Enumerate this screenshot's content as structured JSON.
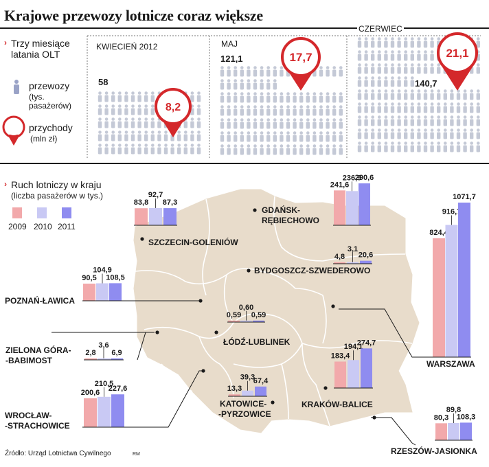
{
  "title": "Krajowe przewozy lotnicze coraz większe",
  "colors": {
    "accent": "#d4282b",
    "map": "#e8dccb",
    "map_border": "#ffffff",
    "bar2009": "#f2a9ab",
    "bar2010": "#c9c9f4",
    "bar2011": "#8f8cf0",
    "person_grey": "#c4c9d6",
    "person_blue": "#9aa3c7"
  },
  "top_section": {
    "heading": "Trzy miesiące latania OLT",
    "legend_passengers": "przewozy",
    "legend_passengers_unit": "(tys. pasażerów)",
    "legend_revenue": "przychody",
    "legend_revenue_unit": "(mln zł)"
  },
  "months": [
    {
      "label": "KWIECIEŃ 2012",
      "passengers_label": "58",
      "revenue_label": "8,2"
    },
    {
      "label": "MAJ",
      "passengers_label": "121,1",
      "revenue_label": "17,7"
    },
    {
      "label": "CZERWIEC",
      "passengers_label": "140,7",
      "revenue_label": "21,1"
    }
  ],
  "map_section": {
    "heading": "Ruch lotniczy w kraju",
    "subheading": "(liczba pasażerów w tys.)",
    "years": [
      "2009",
      "2010",
      "2011"
    ]
  },
  "chart_data": {
    "type": "bar",
    "title": "Ruch lotniczy w kraju",
    "subtitle": "(liczba pasażerów w tys.)",
    "legend_position": "top-left",
    "series_names": [
      "2009",
      "2010",
      "2011"
    ],
    "airports": [
      {
        "name": "GDAŃSK-RĘBIECHOWO",
        "values": [
          241.6,
          236.9,
          290.6
        ],
        "labels": [
          "241,6",
          "236,9",
          "290,6"
        ]
      },
      {
        "name": "SZCZECIN-GOLENIÓW",
        "values": [
          83.8,
          92.7,
          87.3
        ],
        "labels": [
          "83,8",
          "92,7",
          "87,3"
        ]
      },
      {
        "name": "POZNAŃ-ŁAWICA",
        "values": [
          90.5,
          104.9,
          108.5
        ],
        "labels": [
          "90,5",
          "104,9",
          "108,5"
        ]
      },
      {
        "name": "BYDGOSZCZ-SZWEDEROWO",
        "values": [
          4.8,
          3.1,
          20.6
        ],
        "labels": [
          "4,8",
          "3,1",
          "20,6"
        ]
      },
      {
        "name": "ŁÓDŹ-LUBLINEK",
        "values": [
          0.59,
          0.6,
          0.59
        ],
        "labels": [
          "0,59",
          "0,60",
          "0,59"
        ]
      },
      {
        "name": "ZIELONA GÓRA-BABIMOST",
        "values": [
          2.8,
          3.6,
          6.9
        ],
        "labels": [
          "2,8",
          "3,6",
          "6,9"
        ]
      },
      {
        "name": "WROCŁAW-STRACHOWICE",
        "values": [
          200.6,
          210.5,
          227.6
        ],
        "labels": [
          "200,6",
          "210,5",
          "227,6"
        ]
      },
      {
        "name": "KATOWICE-PYRZOWICE",
        "values": [
          13.3,
          39.3,
          67.4
        ],
        "labels": [
          "13,3",
          "39,3",
          "67,4"
        ]
      },
      {
        "name": "KRAKÓW-BALICE",
        "values": [
          183.4,
          194.1,
          274.7
        ],
        "labels": [
          "183,4",
          "194,1",
          "274,7"
        ]
      },
      {
        "name": "WARSZAWA",
        "values": [
          824.4,
          916.7,
          1071.7
        ],
        "labels": [
          "824,4",
          "916,7",
          "1071,7"
        ]
      },
      {
        "name": "RZESZÓW-JASIONKA",
        "values": [
          80.3,
          89.8,
          108.3
        ],
        "labels": [
          "80,3",
          "89,8",
          "108,3"
        ]
      }
    ]
  },
  "airport_labels": {
    "gdansk": [
      "GDAŃSK-",
      "RĘBIECHOWO"
    ],
    "szczecin": "SZCZECIN-GOLENIÓW",
    "poznan": "POZNAŃ-ŁAWICA",
    "bydgoszcz": "BYDGOSZCZ-SZWEDEROWO",
    "lodz": "ŁÓDŹ-LUBLINEK",
    "zielona": [
      "ZIELONA GÓRA-",
      "-BABIMOST"
    ],
    "wroclaw": [
      "WROCŁAW-",
      "-STRACHOWICE"
    ],
    "katowice": [
      "KATOWICE-",
      "-PYRZOWICE"
    ],
    "krakow": "KRAKÓW-BALICE",
    "warszawa": "WARSZAWA",
    "rzeszow": "RZESZÓW-JASIONKA"
  },
  "source": "Źródło: Urząd Lotnictwa Cywilnego",
  "author": "RM"
}
